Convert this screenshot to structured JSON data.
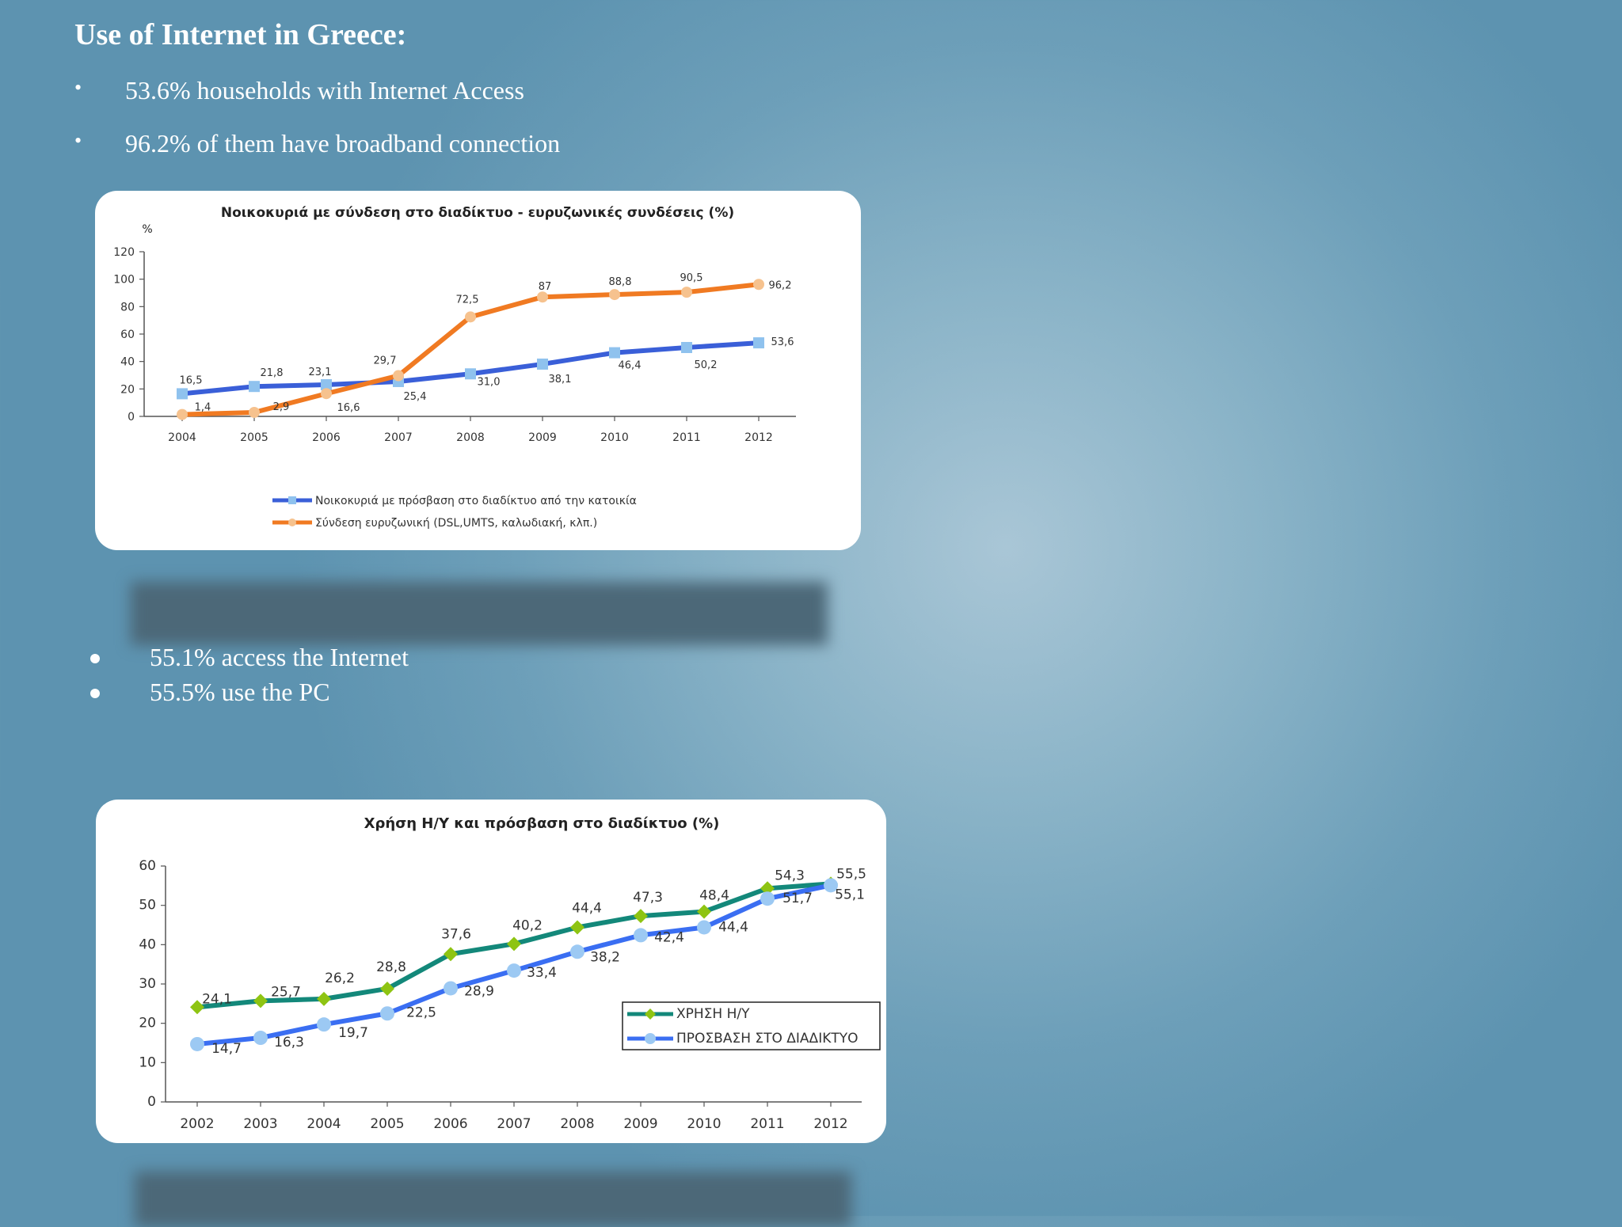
{
  "slide": {
    "title": "Use of Internet in Greece:",
    "bullets": [
      "53.6% households with Internet Access",
      "96.2% of them have broadband connection"
    ],
    "bullets2": [
      "55.1% access the Internet",
      "55.5% use the PC"
    ]
  },
  "chart_data": [
    {
      "type": "line",
      "title": "Νοικοκυριά με σύνδεση στο διαδίκτυο - ευρυζωνικές συνδέσεις (%)",
      "ylabel": "%",
      "xlabel": "",
      "ylim": [
        0,
        120
      ],
      "yticks": [
        0,
        20,
        40,
        60,
        80,
        100,
        120
      ],
      "categories": [
        "2004",
        "2005",
        "2006",
        "2007",
        "2008",
        "2009",
        "2010",
        "2011",
        "2012"
      ],
      "series": [
        {
          "name": "Νοικοκυριά με πρόσβαση στο διαδίκτυο από την κατοικία",
          "values": [
            16.5,
            21.8,
            23.1,
            25.4,
            31.0,
            38.1,
            46.4,
            50.2,
            53.6
          ],
          "labels": [
            "16,5",
            "21,8",
            "23,1",
            "25,4",
            "31,0",
            "38,1",
            "46,4",
            "50,2",
            "53,6"
          ],
          "color": "#3a5fd8",
          "marker_color": "#8fc2ee"
        },
        {
          "name": "Σύνδεση ευρυζωνική (DSL,UMTS, καλωδιακή, κλπ.)",
          "values": [
            1.4,
            2.9,
            16.6,
            29.7,
            72.5,
            87,
            88.8,
            90.5,
            96.2
          ],
          "labels": [
            "1,4",
            "2,9",
            "16,6",
            "29,7",
            "72,5",
            "87",
            "88,8",
            "90,5",
            "96,2"
          ],
          "color": "#f07a22",
          "marker_color": "#f6c28e"
        }
      ],
      "legend": "bottom-center",
      "grid": false
    },
    {
      "type": "line",
      "title": "Χρήση Η/Υ και πρόσβαση στο διαδίκτυο (%)",
      "xlabel": "",
      "ylabel": "",
      "ylim": [
        0,
        60
      ],
      "yticks": [
        0,
        10,
        20,
        30,
        40,
        50,
        60
      ],
      "categories": [
        "2002",
        "2003",
        "2004",
        "2005",
        "2006",
        "2007",
        "2008",
        "2009",
        "2010",
        "2011",
        "2012"
      ],
      "series": [
        {
          "name": "ΧΡΗΣΗ Η/Υ",
          "values": [
            24.1,
            25.7,
            26.2,
            28.8,
            37.6,
            40.2,
            44.4,
            47.3,
            48.4,
            54.3,
            55.5
          ],
          "labels": [
            "24,1",
            "25,7",
            "26,2",
            "28,8",
            "37,6",
            "40,2",
            "44,4",
            "47,3",
            "48,4",
            "54,3",
            "55,5"
          ],
          "color": "#13887a",
          "marker_color": "#8ec412"
        },
        {
          "name": "ΠΡΟΣΒΑΣΗ ΣΤΟ ΔΙΑΔΙΚΤΥΟ",
          "values": [
            14.7,
            16.3,
            19.7,
            22.5,
            28.9,
            33.4,
            38.2,
            42.4,
            44.4,
            51.7,
            55.1
          ],
          "labels": [
            "14,7",
            "16,3",
            "19,7",
            "22,5",
            "28,9",
            "33,4",
            "38,2",
            "42,4",
            "44,4",
            "51,7",
            "55,1"
          ],
          "color": "#3a6ef2",
          "marker_color": "#9cc9f3"
        }
      ],
      "legend": "right",
      "grid": false
    }
  ]
}
